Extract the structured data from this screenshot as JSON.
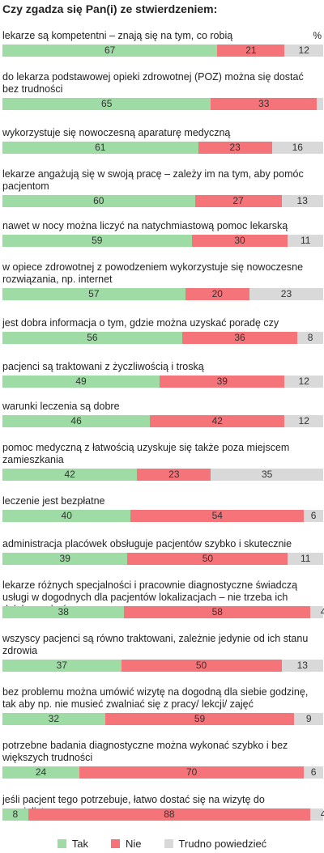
{
  "chart_data": {
    "type": "bar",
    "orientation": "horizontal-stacked",
    "title": "Czy zgadza się Pan(i) ze stwierdzeniem:",
    "unit_label": "%",
    "xlim": [
      0,
      100
    ],
    "legend_position": "bottom",
    "series": [
      {
        "name": "Tak",
        "color": "#9fdca5"
      },
      {
        "name": "Nie",
        "color": "#f5747a"
      },
      {
        "name": "Trudno powiedzieć",
        "color": "#d9d9d9"
      }
    ],
    "categories": [
      "lekarze są kompetentni – znają się na tym, co robią",
      "do lekarza podstawowej opieki zdrowotnej (POZ) można się dostać bez trudności",
      "wykorzystuje się nowoczesną  aparaturę medyczną",
      "lekarze angażują się w swoją pracę – zależy im na tym, aby pomóc pacjentom",
      "nawet w nocy można liczyć na natychmiastową pomoc lekarską",
      "w opiece zdrowotnej z powodzeniem wykorzystuje się nowoczesne rozwiązania, np. internet",
      "jest dobra informacja o tym, gdzie można uzyskać poradę czy pomoc",
      "pacjenci są traktowani z życzliwością i troską",
      "warunki leczenia są dobre",
      "pomoc medyczną z łatwością uzyskuje się także poza miejscem zamieszkania",
      "leczenie jest bezpłatne",
      "administracja placówek obsługuje pacjentów szybko i skutecznie",
      "lekarze różnych specjalności i pracownie diagnostyczne świadczą usługi w dogodnych dla pacjentów lokalizacjach – nie trzeba ich daleko szukać",
      "wszyscy pacjenci są równo traktowani, zależnie jedynie od ich stanu zdrowia",
      "bez problemu można umówić wizytę na dogodną dla siebie godzinę, tak aby np. nie musieć zwalniać się z pracy/ lekcji/ zajęć",
      "potrzebne badania diagnostyczne można wykonać szybko i bez większych trudności",
      "jeśli pacjent tego potrzebuje, łatwo dostać się na wizytę do specjalisty"
    ],
    "values": [
      [
        67,
        21,
        12
      ],
      [
        65,
        33,
        2
      ],
      [
        61,
        23,
        16
      ],
      [
        60,
        27,
        13
      ],
      [
        59,
        30,
        11
      ],
      [
        57,
        20,
        23
      ],
      [
        56,
        36,
        8
      ],
      [
        49,
        39,
        12
      ],
      [
        46,
        42,
        12
      ],
      [
        42,
        23,
        35
      ],
      [
        40,
        54,
        6
      ],
      [
        39,
        50,
        11
      ],
      [
        38,
        58,
        4
      ],
      [
        37,
        50,
        13
      ],
      [
        32,
        59,
        9
      ],
      [
        24,
        70,
        6
      ],
      [
        8,
        88,
        4
      ]
    ]
  }
}
